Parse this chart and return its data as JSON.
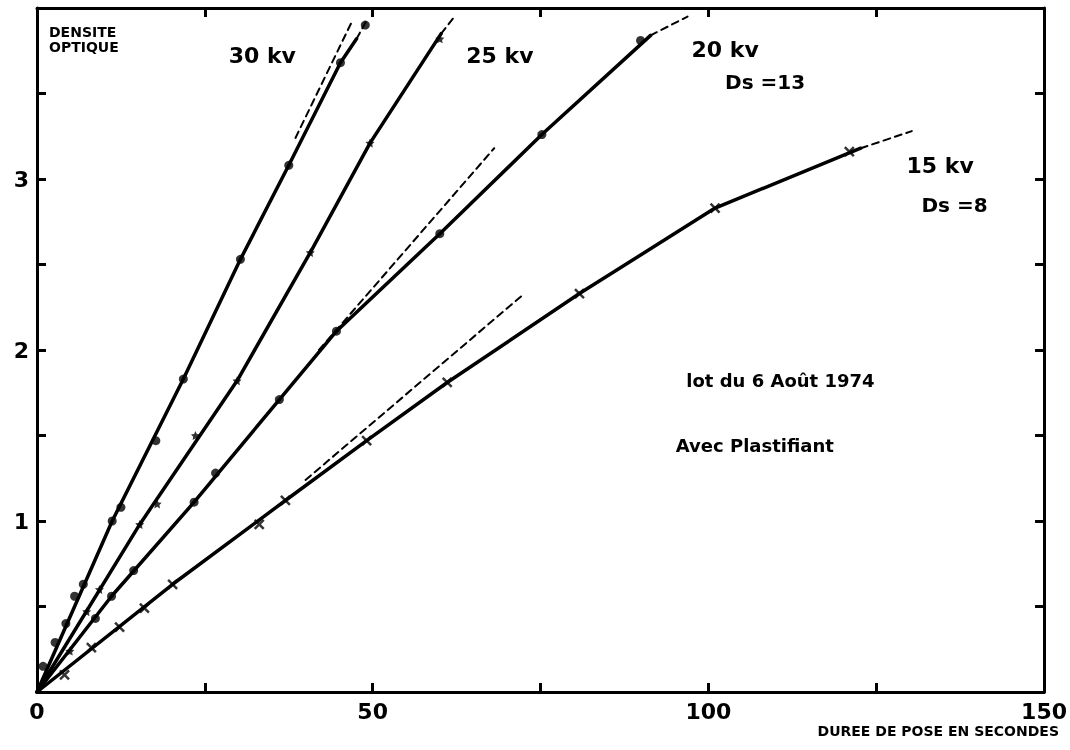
{
  "chart_data": {
    "type": "scatter",
    "xlabel": "DUREE DE POSE EN SECONDES",
    "ylabel": "DENSITE OPTIQUE",
    "xlim": [
      0,
      150
    ],
    "ylim": [
      0,
      4
    ],
    "xticks": [
      0,
      {
        "value": 25,
        "label": null
      },
      50,
      {
        "value": 75,
        "label": null
      },
      100,
      {
        "value": 125,
        "label": null
      },
      150
    ],
    "yticks": [
      {
        "value": 0,
        "label": null
      },
      {
        "value": 0.5,
        "label": null
      },
      1,
      {
        "value": 1.5,
        "label": null
      },
      2,
      {
        "value": 2.5,
        "label": null
      },
      3,
      {
        "value": 3.5,
        "label": null
      }
    ],
    "grid": false,
    "series": [
      {
        "marker": "circle",
        "color": "#000000",
        "x": [
          0.9,
          2.7,
          4.3,
          5.6,
          6.9,
          11.2,
          12.5,
          17.7,
          21.8,
          30.3,
          37.5,
          45.2,
          48.9
        ],
        "values": [
          0.15,
          0.29,
          0.4,
          0.56,
          0.63,
          1.0,
          1.08,
          1.47,
          1.83,
          2.53,
          3.08,
          3.68,
          3.9
        ]
      },
      {
        "type": "line",
        "marker": "none",
        "line_style": "solid",
        "color": "#000000",
        "x": [
          0,
          11.2,
          21.8,
          30.3,
          37.5,
          45.2,
          47.6
        ],
        "values": [
          0,
          1.0,
          1.83,
          2.53,
          3.08,
          3.68,
          3.82
        ]
      },
      {
        "type": "line",
        "marker": "none",
        "line_style": "dashed",
        "color": "#000000",
        "x": [
          47.6,
          49
        ],
        "values": [
          3.82,
          3.92
        ]
      },
      {
        "type": "line",
        "marker": "none",
        "line_style": "dashed",
        "color": "#000000",
        "x": [
          38.5,
          46.9
        ],
        "values": [
          3.24,
          3.92
        ]
      },
      {
        "marker": "star",
        "color": "#000000",
        "x": [
          4.9,
          7.4,
          9.3,
          15.3,
          17.9,
          23.6,
          29.8,
          40.7,
          49.6,
          60
        ],
        "values": [
          0.24,
          0.47,
          0.6,
          0.98,
          1.1,
          1.5,
          1.82,
          2.57,
          3.21,
          3.82
        ]
      },
      {
        "type": "line",
        "marker": "none",
        "line_style": "solid",
        "color": "#000000",
        "x": [
          0,
          15.3,
          29.8,
          40.7,
          49.6,
          60.2
        ],
        "values": [
          0,
          0.98,
          1.82,
          2.57,
          3.21,
          3.85
        ]
      },
      {
        "type": "line",
        "marker": "none",
        "line_style": "dashed",
        "color": "#000000",
        "x": [
          60.2,
          62.2
        ],
        "values": [
          3.85,
          3.95
        ]
      },
      {
        "marker": "circle",
        "color": "#000000",
        "x": [
          8.7,
          11.1,
          14.4,
          23.4,
          26.6,
          36.1,
          44.6,
          60,
          75.2,
          89.9
        ],
        "values": [
          0.43,
          0.56,
          0.71,
          1.11,
          1.28,
          1.71,
          2.11,
          2.68,
          3.26,
          3.81
        ]
      },
      {
        "type": "line",
        "marker": "none",
        "line_style": "solid",
        "color": "#000000",
        "x": [
          0,
          11.1,
          23.4,
          36.1,
          44.6,
          60,
          75.2,
          91.4
        ],
        "values": [
          0,
          0.56,
          1.11,
          1.71,
          2.11,
          2.68,
          3.26,
          3.84
        ]
      },
      {
        "type": "line",
        "marker": "none",
        "line_style": "dashed",
        "color": "#000000",
        "x": [
          91.4,
          96.9
        ],
        "values": [
          3.84,
          3.95
        ]
      },
      {
        "type": "line",
        "marker": "none",
        "line_style": "dashed",
        "color": "#000000",
        "x": [
          42,
          68.1
        ],
        "values": [
          2.0,
          3.18
        ]
      },
      {
        "marker": "cross",
        "color": "#000000",
        "x": [
          4.1,
          8.1,
          12.3,
          16,
          20.2,
          33.1,
          37,
          49.1,
          61.1,
          80.8,
          101,
          121
        ],
        "values": [
          0.1,
          0.26,
          0.38,
          0.49,
          0.63,
          0.98,
          1.12,
          1.47,
          1.81,
          2.33,
          2.83,
          3.16
        ]
      },
      {
        "type": "line",
        "marker": "none",
        "line_style": "solid",
        "color": "#000000",
        "x": [
          0,
          20.2,
          37,
          49.1,
          61.1,
          80.8,
          101,
          122.7
        ],
        "values": [
          0,
          0.63,
          1.12,
          1.47,
          1.81,
          2.33,
          2.83,
          3.18
        ]
      },
      {
        "type": "line",
        "marker": "none",
        "line_style": "dashed",
        "color": "#000000",
        "x": [
          122.7,
          130.3
        ],
        "values": [
          3.18,
          3.28
        ]
      },
      {
        "type": "line",
        "marker": "none",
        "line_style": "dashed",
        "color": "#000000",
        "x": [
          40,
          72.3
        ],
        "values": [
          1.24,
          2.32
        ]
      }
    ],
    "annotations": [
      "30 kv",
      "25 kv",
      "20 kv",
      "Ds =13",
      "15 kv",
      "Ds =8",
      "lot du 6 Août 1974",
      "Avec Plastifiant"
    ]
  }
}
